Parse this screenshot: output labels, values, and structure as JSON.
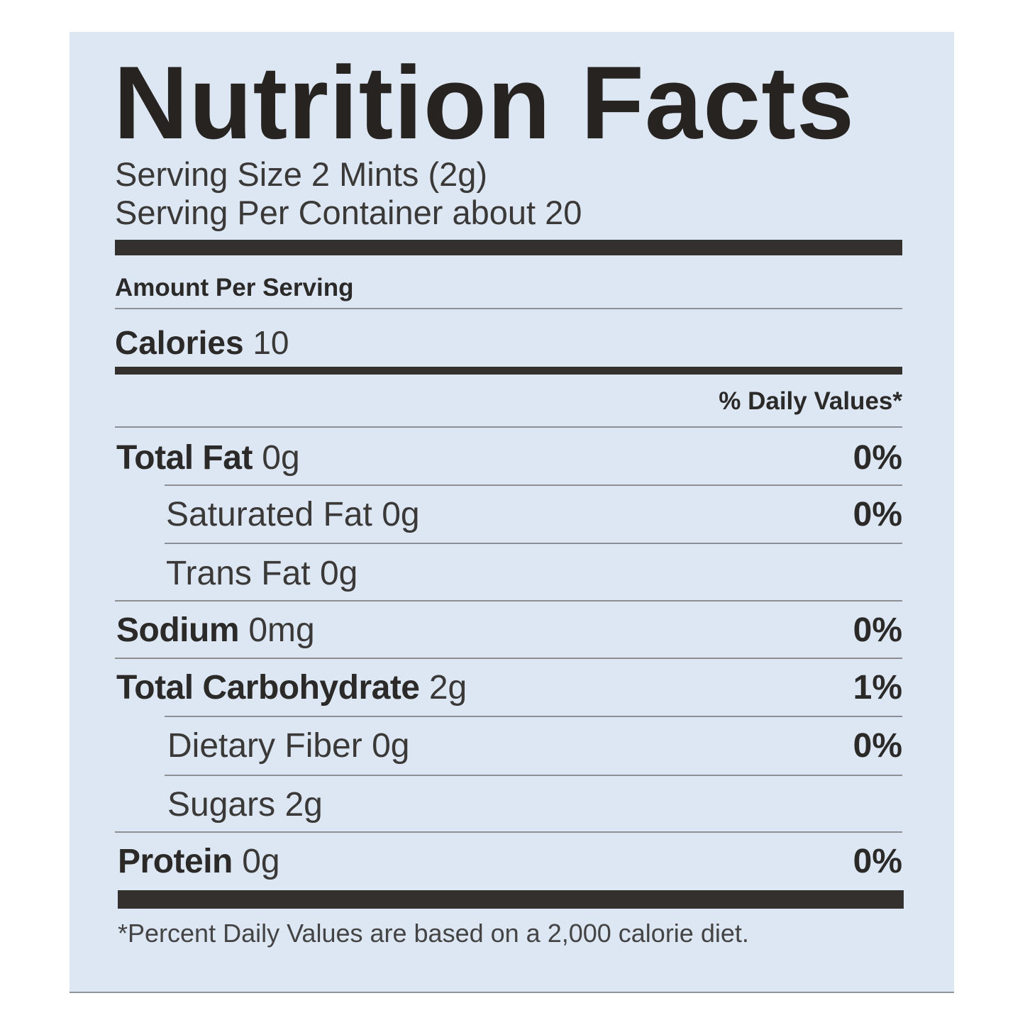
{
  "label": {
    "title": "Nutrition Facts",
    "serving_size": "Serving Size 2 Mints  (2g)",
    "servings_per_container": "Serving Per Container about 20",
    "amount_per_serving": "Amount Per Serving",
    "calories_label": "Calories",
    "calories_value": "10",
    "daily_values_header": "% Daily Values*",
    "nutrients": [
      {
        "name": "Total Fat",
        "amount": "0g",
        "dv": "0%"
      },
      {
        "name": "Saturated Fat",
        "amount": "0g",
        "dv": "0%"
      },
      {
        "name": "Trans Fat",
        "amount": "0g",
        "dv": ""
      },
      {
        "name": "Sodium",
        "amount": "0mg",
        "dv": "0%"
      },
      {
        "name": "Total Carbohydrate",
        "amount": "2g",
        "dv": "1%"
      },
      {
        "name": "Dietary Fiber",
        "amount": "0g",
        "dv": "0%"
      },
      {
        "name": "Sugars",
        "amount": "2g",
        "dv": ""
      },
      {
        "name": "Protein",
        "amount": "0g",
        "dv": "0%"
      }
    ],
    "footnote": "*Percent Daily Values are based on a 2,000 calorie diet.",
    "colors": {
      "background": "#dde7f3",
      "ink": "#2b2a29"
    }
  }
}
